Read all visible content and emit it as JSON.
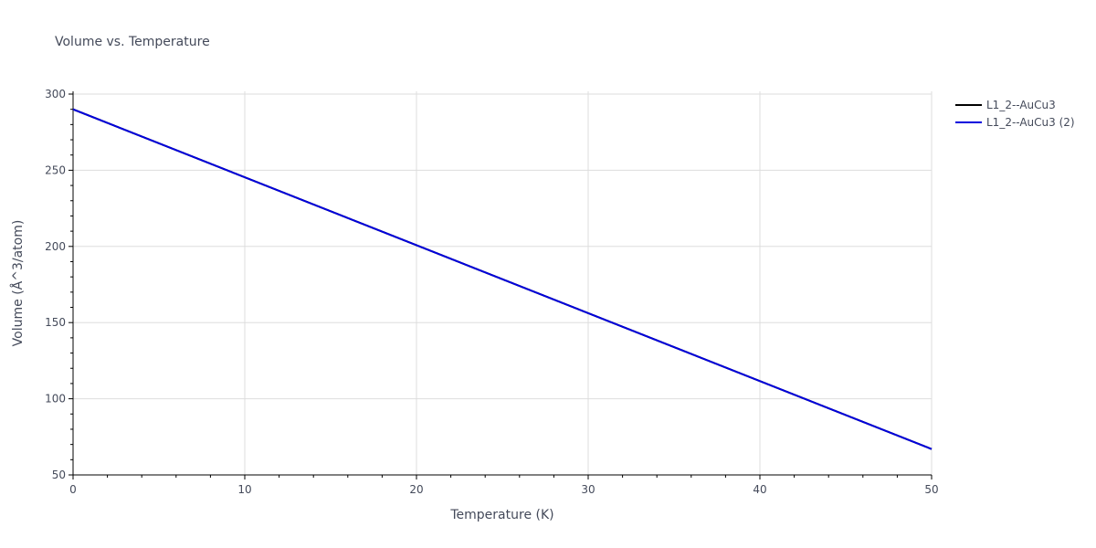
{
  "chart_data": {
    "type": "line",
    "title": "Volume vs. Temperature",
    "xlabel": "Temperature (K)",
    "ylabel": "Volume (Å^3/atom)",
    "xlim": [
      0,
      50
    ],
    "ylim": [
      50,
      300
    ],
    "xticks": [
      0,
      10,
      20,
      30,
      40,
      50
    ],
    "yticks": [
      50,
      100,
      150,
      200,
      250,
      300
    ],
    "grid": true,
    "legend_position": "top-right",
    "series": [
      {
        "name": "L1_2--AuCu3",
        "color": "#000000",
        "x": [
          0,
          50
        ],
        "y": [
          290,
          67
        ]
      },
      {
        "name": "L1_2--AuCu3 (2)",
        "color": "#0000dd",
        "x": [
          0,
          50
        ],
        "y": [
          290,
          67
        ]
      }
    ]
  }
}
